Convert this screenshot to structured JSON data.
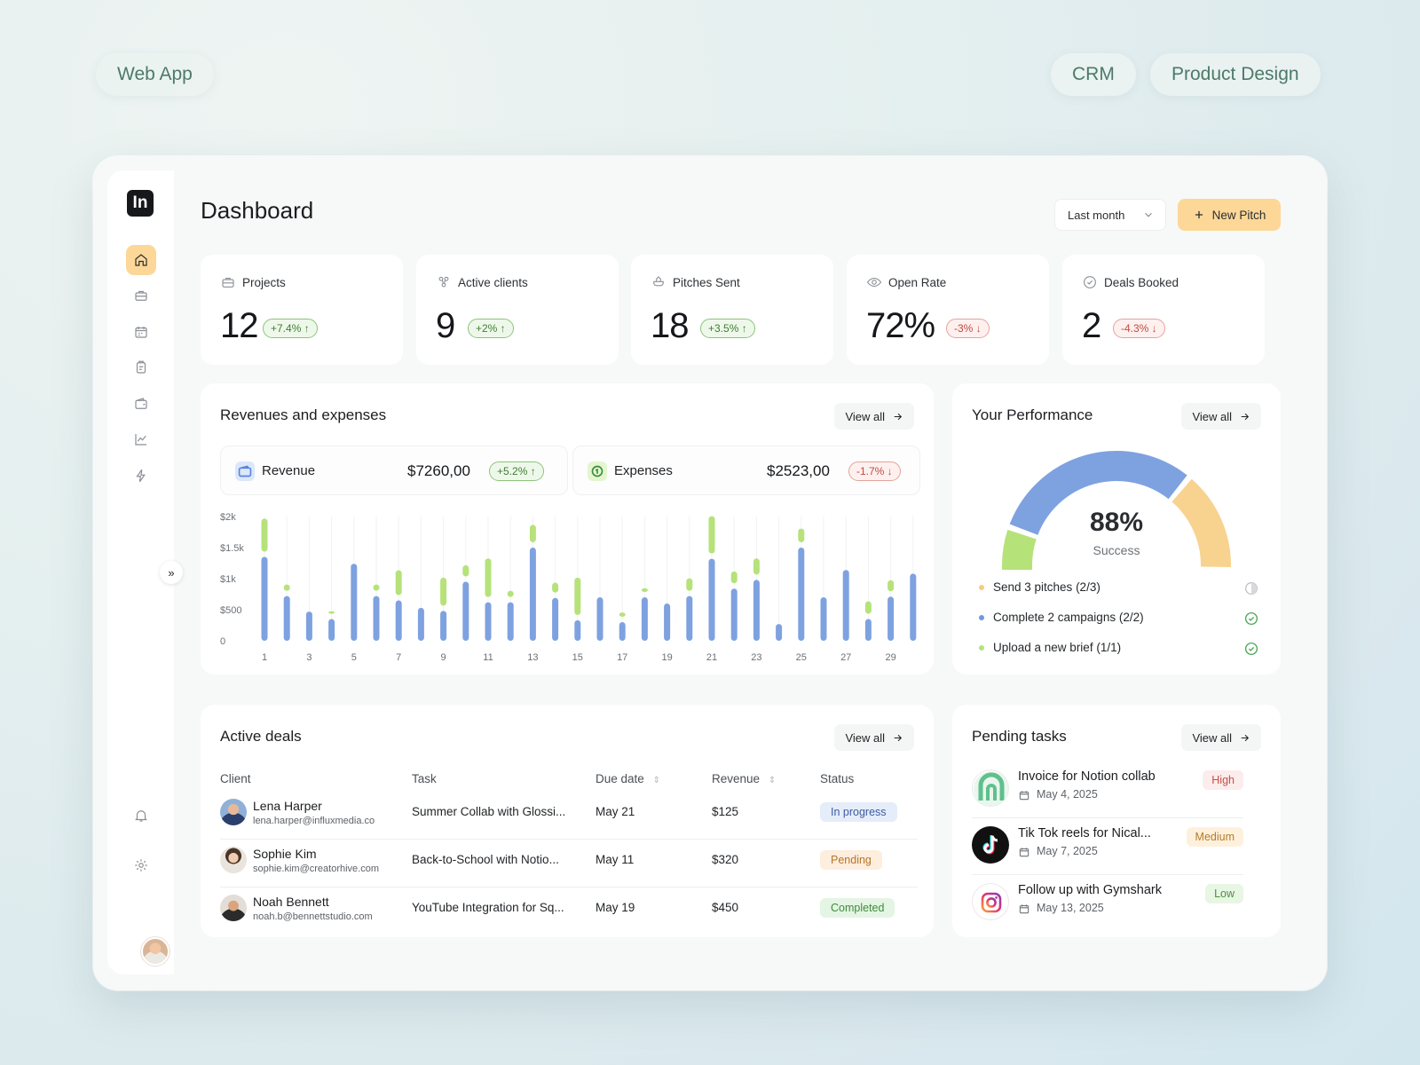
{
  "tags": {
    "left": "Web App",
    "right1": "CRM",
    "right2": "Product Design"
  },
  "app": {
    "logo": "In",
    "title": "Dashboard"
  },
  "header": {
    "period": "Last month",
    "new_pitch": "New Pitch"
  },
  "stats": [
    {
      "label": "Projects",
      "value": "12",
      "change": "+7.4% ↑",
      "trend": "up",
      "icon": "briefcase-icon"
    },
    {
      "label": "Active clients",
      "value": "9",
      "change": "+2% ↑",
      "trend": "up",
      "icon": "clients-icon"
    },
    {
      "label": "Pitches Sent",
      "value": "18",
      "change": "+3.5% ↑",
      "trend": "up",
      "icon": "hand-icon"
    },
    {
      "label": "Open Rate",
      "value": "72%",
      "change": "-3% ↓",
      "trend": "down",
      "icon": "eye-icon"
    },
    {
      "label": "Deals Booked",
      "value": "2",
      "change": "-4.3% ↓",
      "trend": "down",
      "icon": "check-circle-icon"
    }
  ],
  "revenues": {
    "title": "Revenues and expenses",
    "view_all": "View all",
    "revenue": {
      "label": "Revenue",
      "amount": "$7260,00",
      "change": "+5.2% ↑"
    },
    "expenses": {
      "label": "Expenses",
      "amount": "$2523,00",
      "change": "-1.7% ↓"
    }
  },
  "chart_data": {
    "type": "bar",
    "y_tick_labels": [
      "$2k",
      "$1.5k",
      "$1k",
      "$500",
      "0"
    ],
    "x_tick_labels": [
      "1",
      "3",
      "5",
      "7",
      "9",
      "11",
      "13",
      "15",
      "17",
      "19",
      "21",
      "23",
      "25",
      "27",
      "29"
    ],
    "ylim": [
      0,
      2000
    ],
    "categories": [
      1,
      2,
      3,
      4,
      5,
      6,
      7,
      8,
      9,
      10,
      11,
      12,
      13,
      14,
      15,
      16,
      17,
      18,
      19,
      20,
      21,
      22,
      23,
      24,
      25,
      26,
      27,
      28,
      29,
      30
    ],
    "series": [
      {
        "color": "#7ea2e0",
        "values": [
          1350,
          720,
          470,
          350,
          1240,
          720,
          650,
          530,
          480,
          950,
          620,
          620,
          1500,
          690,
          330,
          700,
          300,
          700,
          600,
          720,
          1320,
          840,
          980,
          270,
          1500,
          700,
          1140,
          350,
          710,
          1080
        ]
      },
      {
        "color": "#b6e27a",
        "values": [
          530,
          100,
          0,
          40,
          0,
          100,
          400,
          0,
          450,
          180,
          620,
          100,
          280,
          160,
          600,
          0,
          70,
          60,
          0,
          200,
          600,
          190,
          260,
          0,
          220,
          0,
          0,
          200,
          180,
          0
        ]
      }
    ]
  },
  "performance": {
    "title": "Your Performance",
    "view_all": "View all",
    "percent": "88%",
    "caption": "Success",
    "gauge": {
      "green_fraction": 0.18,
      "blue_fraction": 0.5,
      "orange_fraction": 0.24,
      "remaining_fraction": 0.08
    },
    "goals": [
      {
        "label": "Send 3 pitches (2/3)",
        "color": "#f8cb7d",
        "state": "partial"
      },
      {
        "label": "Complete 2 campaigns (2/2)",
        "color": "#6f9ae0",
        "state": "done"
      },
      {
        "label": "Upload a new brief (1/1)",
        "color": "#b6e27a",
        "state": "done"
      }
    ]
  },
  "deals": {
    "title": "Active deals",
    "view_all": "View all",
    "columns": [
      "Client",
      "Task",
      "Due date",
      "Revenue",
      "Status"
    ],
    "rows": [
      {
        "name": "Lena Harper",
        "email": "lena.harper@influxmedia.co",
        "task": "Summer Collab with Glossi...",
        "due": "May 21",
        "revenue": "$125",
        "status": "In progress",
        "status_bg": "#e5edfb",
        "status_fg": "#3d5c9e"
      },
      {
        "name": "Sophie Kim",
        "email": "sophie.kim@creatorhive.com",
        "task": "Back-to-School with Notio...",
        "due": "May 11",
        "revenue": "$320",
        "status": "Pending",
        "status_bg": "#fdeedd",
        "status_fg": "#b8742a"
      },
      {
        "name": "Noah Bennett",
        "email": "noah.b@bennettstudio.com",
        "task": "YouTube Integration for Sq...",
        "due": "May 19",
        "revenue": "$450",
        "status": "Completed",
        "status_bg": "#e4f5e4",
        "status_fg": "#3f8b3c"
      }
    ]
  },
  "tasks": {
    "title": "Pending tasks",
    "view_all": "View all",
    "items": [
      {
        "title": "Invoice for Notion collab",
        "date": "May 4, 2025",
        "priority": "High",
        "prio_bg": "#fdecec",
        "prio_fg": "#c4514a"
      },
      {
        "title": "Tik Tok reels for Nical...",
        "date": "May 7, 2025",
        "priority": "Medium",
        "prio_bg": "#fdf1de",
        "prio_fg": "#b77a26"
      },
      {
        "title": "Follow up with Gymshark",
        "date": "May 13, 2025",
        "priority": "Low",
        "prio_bg": "#e8f6e4",
        "prio_fg": "#4d8f3e"
      }
    ]
  }
}
